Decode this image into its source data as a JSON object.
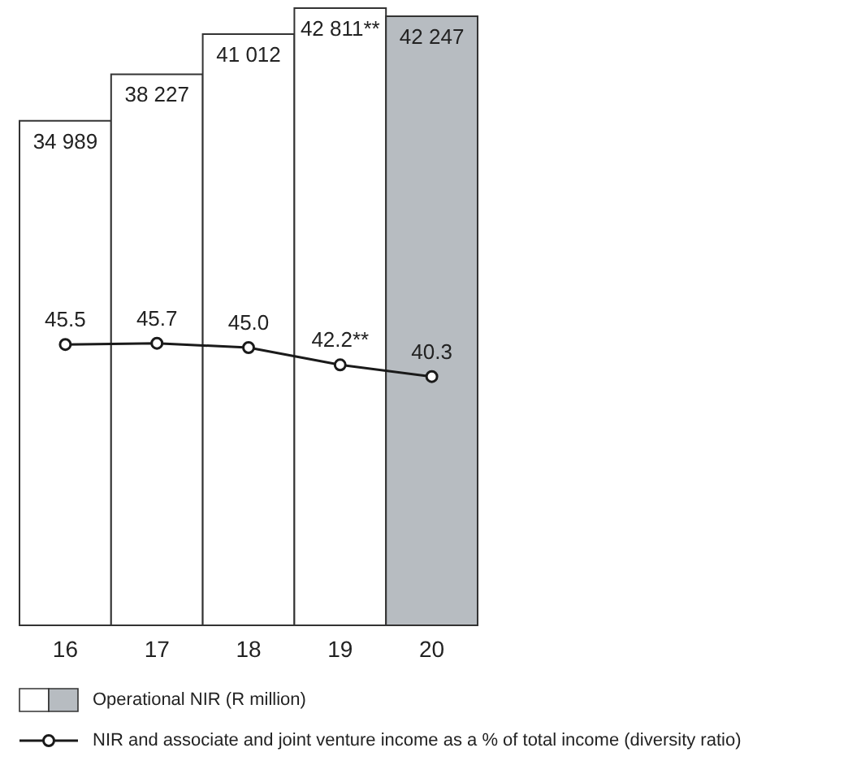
{
  "chart_data": {
    "type": "bar",
    "categories": [
      "16",
      "17",
      "18",
      "19",
      "20"
    ],
    "series": [
      {
        "name": "Operational NIR (R million)",
        "colors": [
          "#ffffff",
          "#ffffff",
          "#ffffff",
          "#ffffff",
          "#b7bcc1"
        ],
        "values": [
          34989,
          38227,
          41012,
          42811,
          42247
        ],
        "value_labels": [
          "34 989",
          "38 227",
          "41 012",
          "42 811**",
          "42 247"
        ]
      },
      {
        "name": "NIR and associate and joint venture income as a % of total income (diversity ratio)",
        "type": "line",
        "axis": "y2",
        "color": "#1a1a1a",
        "values": [
          45.5,
          45.7,
          45.0,
          42.2,
          40.3
        ],
        "value_labels": [
          "45.5",
          "45.7",
          "45.0",
          "42.2**",
          "40.3"
        ]
      }
    ],
    "y2lim": [
      0,
      100
    ],
    "tick_labels": "x",
    "legend": "bottom",
    "marker": "circle"
  }
}
